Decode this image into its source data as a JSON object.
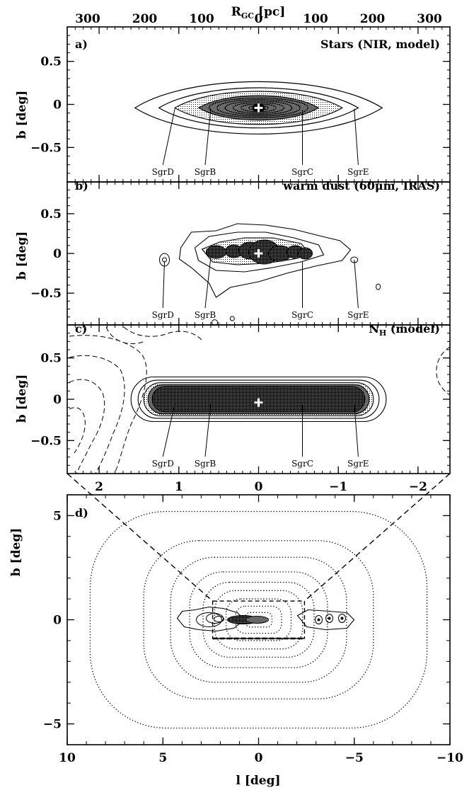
{
  "chart_data": [
    {
      "panel": "a)",
      "type": "contour",
      "title": "Stars (NIR, model)",
      "xlabel": "",
      "ylabel": "b [deg]",
      "top_axis_label": "R_GC [pc]",
      "top_axis_ticks": [
        "300",
        "200",
        "100",
        "0",
        "100",
        "200",
        "300"
      ],
      "top_axis_values": [
        -300,
        -200,
        -100,
        0,
        100,
        200,
        300
      ],
      "xlim": [
        2.4,
        -2.4
      ],
      "ylim": [
        -0.9,
        0.9
      ],
      "ytick_labels": [
        "0.5",
        "0",
        "−0.5"
      ],
      "ytick_values": [
        0.5,
        0,
        -0.5
      ],
      "contours": [
        {
          "rx": 1.55,
          "ry": 0.3,
          "style": "solid"
        },
        {
          "rx": 1.25,
          "ry": 0.23,
          "style": "solid"
        },
        {
          "rx": 1.05,
          "ry": 0.19,
          "style": "stipple"
        },
        {
          "rx": 0.75,
          "ry": 0.14,
          "style": "dense"
        }
      ],
      "center": [
        0.0,
        -0.04
      ],
      "sources": [
        {
          "name": "SgrD",
          "l": 1.05,
          "b": -0.05,
          "label_l": 1.2
        },
        {
          "name": "SgrB",
          "l": 0.6,
          "b": -0.05,
          "label_l": 0.67
        },
        {
          "name": "SgrC",
          "l": -0.55,
          "b": -0.07,
          "label_l": -0.55
        },
        {
          "name": "SgrE",
          "l": -1.2,
          "b": -0.05,
          "label_l": -1.25
        }
      ]
    },
    {
      "panel": "b)",
      "type": "contour",
      "title": "warm dust (60μm, IRAS)",
      "xlabel": "",
      "ylabel": "b [deg]",
      "xlim": [
        2.4,
        -2.4
      ],
      "ylim": [
        -0.9,
        0.9
      ],
      "ytick_labels": [
        "0.5",
        "0",
        "−0.5"
      ],
      "ytick_values": [
        0.5,
        0,
        -0.5
      ],
      "center": [
        0.0,
        -0.02
      ],
      "sources": [
        {
          "name": "SgrD",
          "l": 1.18,
          "b": -0.1,
          "label_l": 1.2
        },
        {
          "name": "SgrB",
          "l": 0.6,
          "b": -0.05,
          "label_l": 0.67
        },
        {
          "name": "SgrC",
          "l": -0.55,
          "b": -0.1,
          "label_l": -0.55
        },
        {
          "name": "SgrE",
          "l": -1.2,
          "b": -0.08,
          "label_l": -1.25
        }
      ]
    },
    {
      "panel": "c)",
      "type": "contour",
      "title": "N_H (model)",
      "xlabel": "",
      "ylabel": "b [deg]",
      "xlim": [
        2.4,
        -2.4
      ],
      "ylim": [
        -0.9,
        0.9
      ],
      "xtick_labels": [
        "2",
        "1",
        "0",
        "−1",
        "−2"
      ],
      "xtick_values": [
        2,
        1,
        0,
        -1,
        -2
      ],
      "ytick_labels": [
        "0.5",
        "0",
        "−0.5"
      ],
      "ytick_values": [
        0.5,
        0,
        -0.5
      ],
      "bar": {
        "l_min": -1.6,
        "l_max": 1.6,
        "b_half": 0.27
      },
      "center": [
        0.0,
        -0.04
      ],
      "sources": [
        {
          "name": "SgrD",
          "l": 1.05,
          "b": -0.05,
          "label_l": 1.2
        },
        {
          "name": "SgrB",
          "l": 0.6,
          "b": -0.05,
          "label_l": 0.67
        },
        {
          "name": "SgrC",
          "l": -0.55,
          "b": -0.07,
          "label_l": -0.55
        },
        {
          "name": "SgrE",
          "l": -1.2,
          "b": -0.05,
          "label_l": -1.25
        }
      ]
    },
    {
      "panel": "d)",
      "type": "contour",
      "title": "",
      "xlabel": "l [deg]",
      "ylabel": "b [deg]",
      "xlim": [
        10,
        -10
      ],
      "ylim": [
        -6,
        6
      ],
      "xtick_labels": [
        "10",
        "5",
        "0",
        "−5",
        "−10"
      ],
      "xtick_values": [
        10,
        5,
        0,
        -5,
        -10
      ],
      "ytick_labels": [
        "5",
        "0",
        "−5"
      ],
      "ytick_values": [
        5,
        0,
        -5
      ],
      "dotted_contours": [
        {
          "rx": 8.8,
          "ry": 5.2
        },
        {
          "rx": 6.0,
          "ry": 3.8
        },
        {
          "rx": 4.6,
          "ry": 3.0
        },
        {
          "rx": 3.6,
          "ry": 2.3
        },
        {
          "rx": 2.9,
          "ry": 1.8
        },
        {
          "rx": 2.3,
          "ry": 1.4
        },
        {
          "rx": 1.7,
          "ry": 1.0
        },
        {
          "rx": 1.2,
          "ry": 0.65
        },
        {
          "rx": 0.7,
          "ry": 0.35
        }
      ],
      "zoom_box": {
        "l": [
          2.4,
          -2.4
        ],
        "b": [
          -0.9,
          0.9
        ]
      }
    }
  ]
}
